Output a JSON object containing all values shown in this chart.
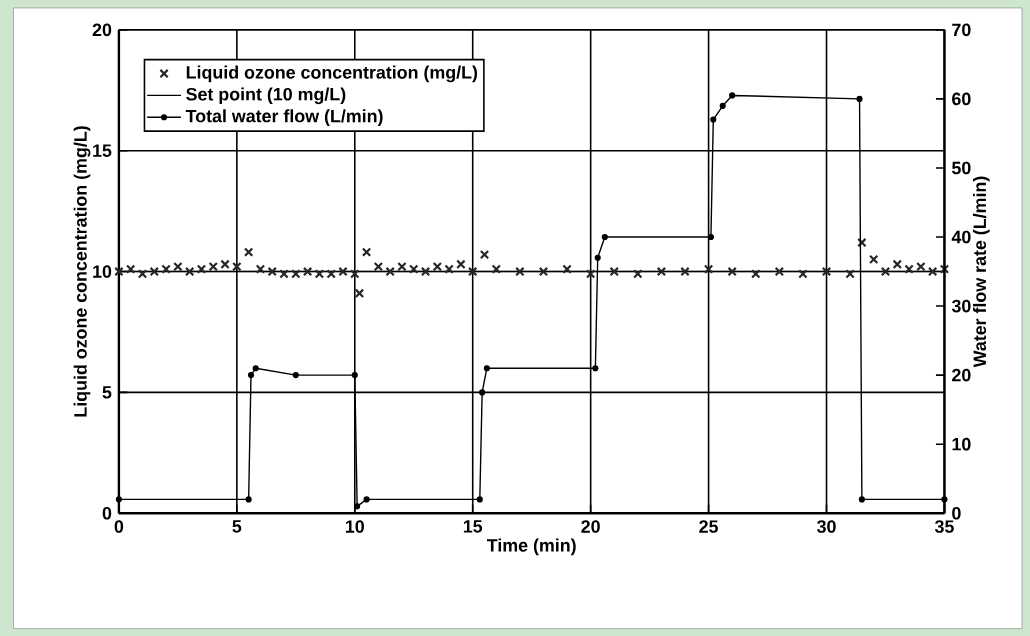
{
  "chart_data": {
    "type": "line",
    "xlabel": "Time (min)",
    "ylabel": "Liquid ozone concentration (mg/L)",
    "y2label": "Water flow rate (L/min)",
    "xlim": [
      0,
      35
    ],
    "xticks": [
      0,
      5,
      10,
      15,
      20,
      25,
      30,
      35
    ],
    "ylim": [
      0,
      20
    ],
    "yticks": [
      0,
      5,
      10,
      15,
      20
    ],
    "y2lim": [
      0,
      70
    ],
    "y2ticks": [
      0,
      10,
      20,
      30,
      40,
      50,
      60,
      70
    ],
    "grid": true,
    "legend": "top left",
    "series": [
      {
        "name": "Liquid ozone concentration (mg/L)",
        "type": "scatter",
        "marker": "cross",
        "color": "#262626",
        "x": [
          0,
          0.5,
          1,
          1.5,
          2,
          2.5,
          3,
          3.5,
          4,
          4.5,
          5,
          5.5,
          6,
          6.5,
          7,
          7.5,
          8,
          8.5,
          9,
          9.5,
          10,
          10.2,
          10.5,
          11,
          11.5,
          12,
          12.5,
          13,
          13.5,
          14,
          14.5,
          15,
          15.5,
          16,
          17,
          18,
          19,
          20,
          21,
          22,
          23,
          24,
          25,
          26,
          27,
          28,
          29,
          30,
          31,
          31.5,
          32,
          32.5,
          33,
          33.5,
          34,
          34.5,
          35
        ],
        "values": [
          10.0,
          10.1,
          9.9,
          10.0,
          10.1,
          10.2,
          10.0,
          10.1,
          10.2,
          10.3,
          10.2,
          10.8,
          10.1,
          10.0,
          9.9,
          9.9,
          10.0,
          9.9,
          9.9,
          10.0,
          9.9,
          9.1,
          10.8,
          10.2,
          10.0,
          10.2,
          10.1,
          10.0,
          10.2,
          10.1,
          10.3,
          10.0,
          10.7,
          10.1,
          10.0,
          10.0,
          10.1,
          9.9,
          10.0,
          9.9,
          10.0,
          10.0,
          10.1,
          10.0,
          9.9,
          10.0,
          9.9,
          10.0,
          9.9,
          11.2,
          10.5,
          10.0,
          10.3,
          10.1,
          10.2,
          10.0,
          10.1
        ]
      },
      {
        "name": "Set point (10 mg/L)",
        "marker": "none",
        "color": "#000000",
        "x": [
          0,
          35
        ],
        "values": [
          10,
          10
        ]
      },
      {
        "name": "Total water flow (L/min)",
        "marker": "circle",
        "color": "#000000",
        "axis": "y2",
        "x": [
          0,
          5.5,
          5.6,
          5.8,
          7.5,
          10,
          10.1,
          10.5,
          15.3,
          15.4,
          15.6,
          20.2,
          20.3,
          20.6,
          25.1,
          25.2,
          25.6,
          26,
          31.4,
          31.5,
          35
        ],
        "values": [
          2,
          2,
          20,
          21,
          20,
          20,
          1,
          2,
          2,
          17.5,
          21,
          21,
          37,
          40,
          40,
          57,
          59,
          60.5,
          60,
          2,
          2
        ]
      }
    ]
  }
}
